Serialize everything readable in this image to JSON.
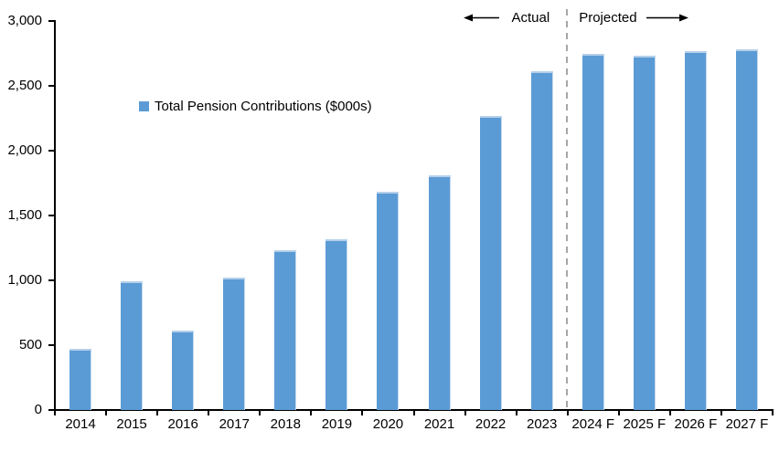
{
  "chart_data": {
    "type": "bar",
    "title": "",
    "legend_label": "Total Pension Contributions ($000s)",
    "categories": [
      "2014",
      "2015",
      "2016",
      "2017",
      "2018",
      "2019",
      "2020",
      "2021",
      "2022",
      "2023",
      "2024 F",
      "2025 F",
      "2026 F",
      "2027 F"
    ],
    "values": [
      470,
      990,
      610,
      1020,
      1230,
      1320,
      1680,
      1810,
      2270,
      2610,
      2750,
      2730,
      2770,
      2780
    ],
    "xlabel": "",
    "ylabel": "",
    "ylim": [
      0,
      3000
    ],
    "ytick_interval": 500,
    "ytick_labels": [
      "0",
      "500",
      "1,000",
      "1,500",
      "2,000",
      "2,500",
      "3,000"
    ],
    "grid": false,
    "legend_position": "inside-upper-left",
    "bar_color": "#5b9bd5",
    "bar_highlight_color": "#b6d0ea",
    "axis_color": "#000000",
    "divider": {
      "after_category": "2023",
      "color": "#a6a6a6",
      "style": "dashed"
    },
    "annotations": {
      "actual": "Actual",
      "projected": "Projected"
    }
  }
}
